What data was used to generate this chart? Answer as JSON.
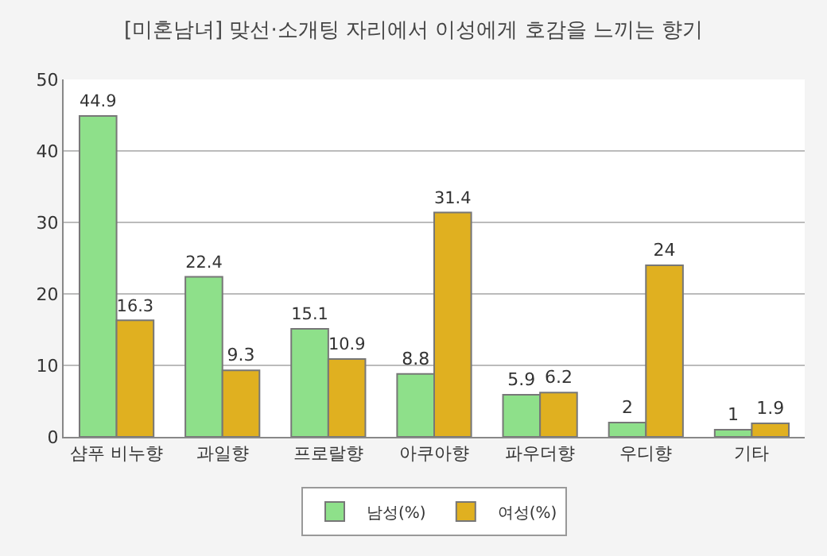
{
  "chart_data": {
    "type": "bar",
    "title": "[미혼남녀] 맞선·소개팅 자리에서 이성에게 호감을 느끼는 향기",
    "categories": [
      "샴푸 비누향",
      "과일향",
      "프로랄향",
      "아쿠아향",
      "파우더향",
      "우디향",
      "기타"
    ],
    "series": [
      {
        "name": "남성(%)",
        "color": "#8ee08a",
        "values": [
          44.9,
          22.4,
          15.1,
          8.8,
          5.9,
          2,
          1
        ]
      },
      {
        "name": "여성(%)",
        "color": "#e0b020",
        "values": [
          16.3,
          9.3,
          10.9,
          31.4,
          6.2,
          24,
          1.9
        ]
      }
    ],
    "ylim": [
      0,
      50
    ],
    "yticks": [
      0,
      10,
      20,
      30,
      40,
      50
    ],
    "grid": "y",
    "legend": "bottom",
    "data_labels": true
  }
}
